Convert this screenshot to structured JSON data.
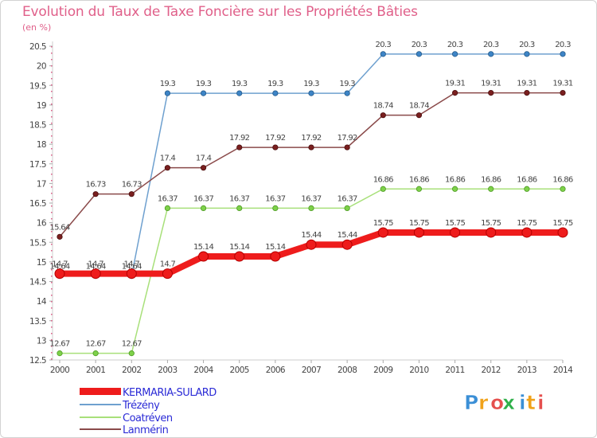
{
  "title": "Evolution du Taux de Taxe Foncière sur les Propriétés Bâties",
  "unit_label": "(en %)",
  "logo": {
    "letters": [
      "P",
      "r",
      "o",
      "x",
      "i",
      "t",
      "i"
    ],
    "colors": [
      "#3b8fd6",
      "#f0a21a",
      "#e5504e",
      "#2fb04a",
      "#3b8fd6",
      "#f0a21a",
      "#e5504e"
    ]
  },
  "colors": {
    "title": "#e0608a",
    "axis": "#cccccc"
  },
  "chart_data": {
    "type": "line",
    "title": "Evolution du Taux de Taxe Foncière sur les Propriétés Bâties",
    "ylabel": "(en %)",
    "xlabel": "",
    "ylim": [
      12.5,
      20.5
    ],
    "yticks": [
      "12.5",
      "13",
      "13.5",
      "14",
      "14.5",
      "15",
      "15.5",
      "16",
      "16.5",
      "17",
      "17.5",
      "18",
      "18.5",
      "19",
      "19.5",
      "20",
      "20.5"
    ],
    "categories": [
      "2000",
      "2001",
      "2002",
      "2003",
      "2004",
      "2005",
      "2006",
      "2007",
      "2008",
      "2009",
      "2010",
      "2011",
      "2012",
      "2013",
      "2014"
    ],
    "grid": false,
    "legend": "bottom-left",
    "series": [
      {
        "name": "KERMARIA-SULARD",
        "color": "#ee1c1c",
        "marker_stroke": "#b50000",
        "thick": true,
        "values": [
          14.7,
          14.7,
          14.7,
          14.7,
          15.14,
          15.14,
          15.14,
          15.44,
          15.44,
          15.75,
          15.75,
          15.75,
          15.75,
          15.75,
          15.75
        ],
        "labels": [
          "14.7",
          "14.7",
          "14.7",
          "14.7",
          "15.14",
          "15.14",
          "15.14",
          "15.44",
          "15.44",
          "15.75",
          "15.75",
          "15.75",
          "15.75",
          "15.75",
          "15.75"
        ]
      },
      {
        "name": "Trézény",
        "color": "#6ea0cf",
        "marker_fill": "#3d84c6",
        "marker_stroke": "#255b8a",
        "thick": false,
        "values": [
          14.64,
          14.64,
          14.64,
          19.3,
          19.3,
          19.3,
          19.3,
          19.3,
          19.3,
          20.3,
          20.3,
          20.3,
          20.3,
          20.3,
          20.3
        ],
        "labels": [
          "14.64",
          "14.64",
          "14.64",
          "19.3",
          "19.3",
          "19.3",
          "19.3",
          "19.3",
          "19.3",
          "20.3",
          "20.3",
          "20.3",
          "20.3",
          "20.3",
          "20.3"
        ]
      },
      {
        "name": "Coatréven",
        "color": "#a8e07a",
        "marker_fill": "#7ed14a",
        "marker_stroke": "#4c9a22",
        "thick": false,
        "values": [
          12.67,
          12.67,
          12.67,
          16.37,
          16.37,
          16.37,
          16.37,
          16.37,
          16.37,
          16.86,
          16.86,
          16.86,
          16.86,
          16.86,
          16.86
        ],
        "labels": [
          "12.67",
          "12.67",
          "12.67",
          "16.37",
          "16.37",
          "16.37",
          "16.37",
          "16.37",
          "16.37",
          "16.86",
          "16.86",
          "16.86",
          "16.86",
          "16.86",
          "16.86"
        ]
      },
      {
        "name": "Lanmérin",
        "color": "#8a4a4a",
        "marker_fill": "#7a1f1f",
        "marker_stroke": "#4a0f0f",
        "thick": false,
        "values": [
          15.64,
          16.73,
          16.73,
          17.4,
          17.4,
          17.92,
          17.92,
          17.92,
          17.92,
          18.74,
          18.74,
          19.31,
          19.31,
          19.31,
          19.31
        ],
        "labels": [
          "15.64",
          "16.73",
          "16.73",
          "17.4",
          "17.4",
          "17.92",
          "17.92",
          "17.92",
          "17.92",
          "18.74",
          "18.74",
          "19.31",
          "19.31",
          "19.31",
          "19.31"
        ]
      }
    ]
  }
}
